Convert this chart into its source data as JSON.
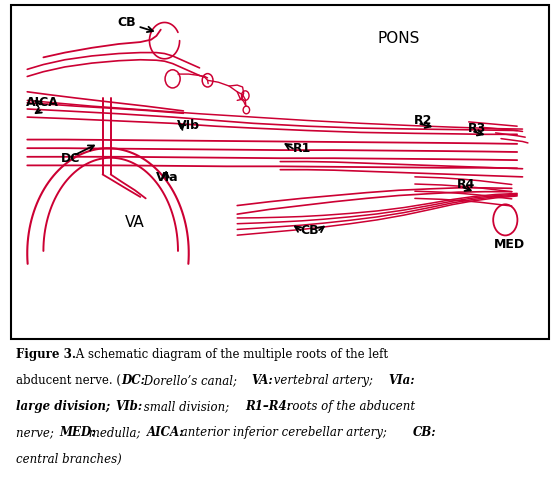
{
  "fig_width": 5.55,
  "fig_height": 4.78,
  "dpi": 100,
  "bg_color": "#ffffff",
  "line_color": "#cc0033",
  "text_color": "#000000",
  "border_color": "#000000"
}
